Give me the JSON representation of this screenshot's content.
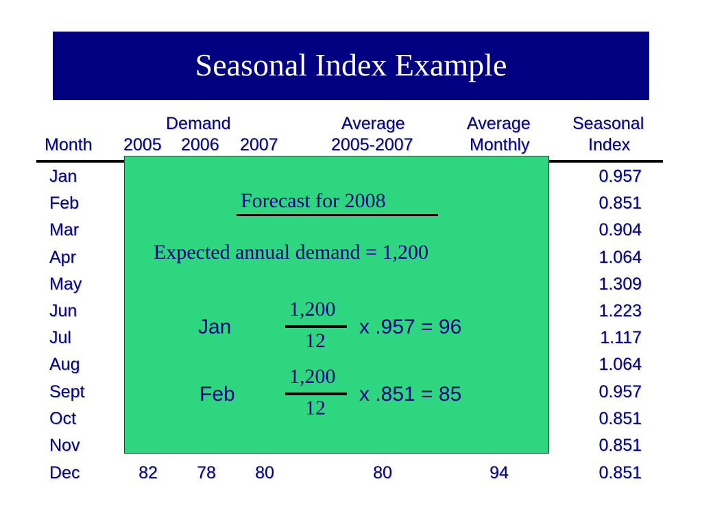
{
  "title": "Seasonal Index Example",
  "headers": {
    "demand": "Demand",
    "month": "Month",
    "y2005": "2005",
    "y2006": "2006",
    "y2007": "2007",
    "average": "Average",
    "average_range": "2005-2007",
    "average2": "Average",
    "monthly": "Monthly",
    "seasonal": "Seasonal",
    "index": "Index"
  },
  "rows": [
    {
      "month": "Jan",
      "index": "0.957"
    },
    {
      "month": "Feb",
      "index": "0.851"
    },
    {
      "month": "Mar",
      "index": "0.904"
    },
    {
      "month": "Apr",
      "index": "1.064"
    },
    {
      "month": "May",
      "index": "1.309"
    },
    {
      "month": "Jun",
      "index": "1.223"
    },
    {
      "month": "Jul",
      "index": "1.117"
    },
    {
      "month": "Aug",
      "index": "1.064"
    },
    {
      "month": "Sept",
      "index": "0.957"
    },
    {
      "month": "Oct",
      "index": "0.851"
    },
    {
      "month": "Nov",
      "index": "0.851"
    },
    {
      "month": "Dec",
      "index": "0.851",
      "y2005": "82",
      "y2006": "78",
      "y2007": "80",
      "average": "80",
      "monthly": "94"
    }
  ],
  "overlay": {
    "heading": "Forecast for 2008",
    "annual": "Expected annual demand = 1,200",
    "examples": [
      {
        "label": "Jan",
        "numerator": "1,200",
        "denominator": "12",
        "result": "x .957 = 96"
      },
      {
        "label": "Feb",
        "numerator": "1,200",
        "denominator": "12",
        "result": "x .851 = 85"
      }
    ]
  },
  "colors": {
    "title_bg": "#000080",
    "text": "#000080",
    "overlay_bg": "#2ed77f"
  }
}
